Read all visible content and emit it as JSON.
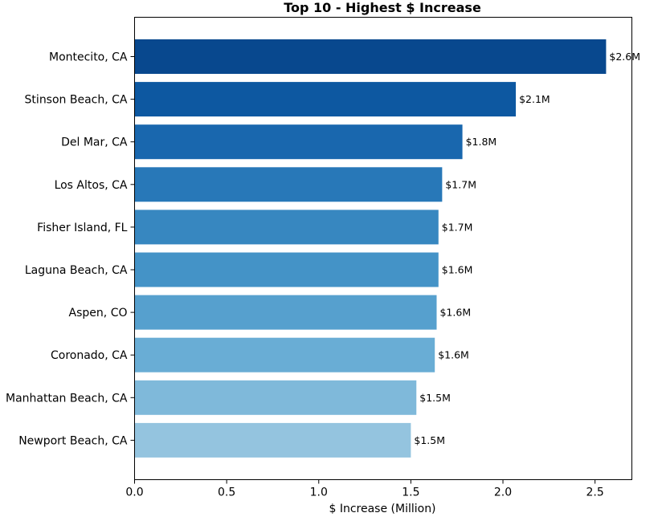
{
  "chart_data": {
    "type": "bar",
    "orientation": "horizontal",
    "title": "Top 10 - Highest $ Increase",
    "xlabel": "$ Increase (Million)",
    "ylabel": "",
    "xlim": [
      0,
      2.7
    ],
    "xticks": [
      0.0,
      0.5,
      1.0,
      1.5,
      2.0,
      2.5
    ],
    "xtick_labels": [
      "0.0",
      "0.5",
      "1.0",
      "1.5",
      "2.0",
      "2.5"
    ],
    "grid": false,
    "categories": [
      "Montecito, CA",
      "Stinson Beach, CA",
      "Del Mar, CA",
      "Los Altos, CA",
      "Fisher Island, FL",
      "Laguna Beach, CA",
      "Aspen, CO",
      "Coronado, CA",
      "Manhattan Beach, CA",
      "Newport Beach, CA"
    ],
    "values": [
      2.56,
      2.07,
      1.78,
      1.67,
      1.65,
      1.65,
      1.64,
      1.63,
      1.53,
      1.5
    ],
    "data_labels": [
      "$2.6M",
      "$2.1M",
      "$1.8M",
      "$1.7M",
      "$1.7M",
      "$1.6M",
      "$1.6M",
      "$1.6M",
      "$1.5M",
      "$1.5M"
    ],
    "colors": [
      "#08488e",
      "#0d58a1",
      "#1967ae",
      "#2878b8",
      "#3787c0",
      "#4493c7",
      "#56a0ce",
      "#69add5",
      "#7fb9da",
      "#94c4df"
    ]
  }
}
